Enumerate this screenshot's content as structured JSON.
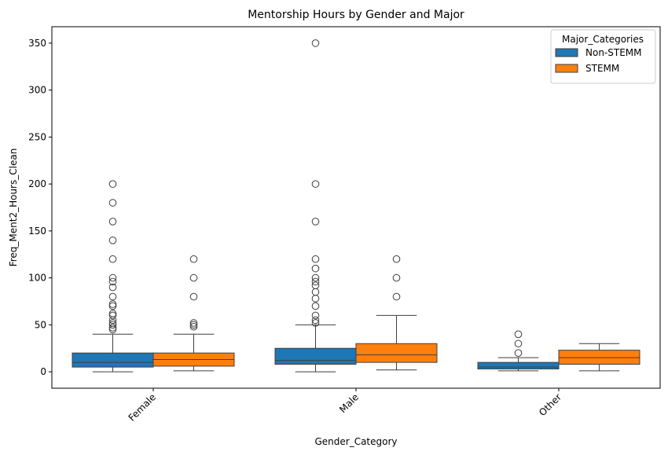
{
  "chart_data": {
    "type": "box",
    "title": "Mentorship Hours by Gender and Major",
    "xlabel": "Gender_Category",
    "ylabel": "Freq_Ment2_Hours_Clean",
    "categories": [
      "Female",
      "Male",
      "Other"
    ],
    "ylim": [
      -17.5,
      367.5
    ],
    "yticks": [
      0,
      50,
      100,
      150,
      200,
      250,
      300,
      350
    ],
    "grid": false,
    "legend": {
      "title": "Major_Categories",
      "placement": "top-right",
      "entries": [
        "Non-STEMM",
        "STEMM"
      ]
    },
    "series": [
      {
        "name": "Non-STEMM",
        "color": "#1f77b4",
        "boxes": [
          {
            "whisker_low": 0,
            "q1": 5,
            "median": 10,
            "q3": 20,
            "whisker_high": 40,
            "outliers": [
              45,
              47,
              50,
              52,
              55,
              60,
              62,
              70,
              72,
              80,
              90,
              96,
              100,
              120,
              140,
              160,
              180,
              200
            ]
          },
          {
            "whisker_low": 0,
            "q1": 8,
            "median": 12,
            "q3": 25,
            "whisker_high": 50,
            "outliers": [
              52,
              55,
              60,
              70,
              78,
              85,
              92,
              96,
              100,
              110,
              120,
              160,
              200,
              350
            ]
          },
          {
            "whisker_low": 1,
            "q1": 3,
            "median": 5,
            "q3": 10,
            "whisker_high": 15,
            "outliers": [
              20,
              30,
              40
            ]
          }
        ]
      },
      {
        "name": "STEMM",
        "color": "#ff7f0e",
        "boxes": [
          {
            "whisker_low": 1,
            "q1": 6,
            "median": 13,
            "q3": 20,
            "whisker_high": 40,
            "outliers": [
              48,
              50,
              52,
              80,
              100,
              120
            ]
          },
          {
            "whisker_low": 2,
            "q1": 10,
            "median": 18,
            "q3": 30,
            "whisker_high": 60,
            "outliers": [
              80,
              100,
              120
            ]
          },
          {
            "whisker_low": 1,
            "q1": 8,
            "median": 15,
            "q3": 23,
            "whisker_high": 30,
            "outliers": []
          }
        ]
      }
    ]
  }
}
